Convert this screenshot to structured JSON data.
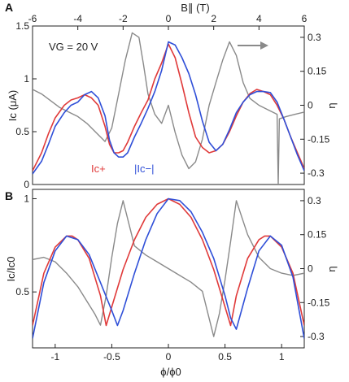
{
  "colors": {
    "red": "#E03A3A",
    "blue": "#2F4FD8",
    "gray": "#8A8A8A",
    "axis": "#222222"
  },
  "chart_data": [
    {
      "panel": "A",
      "type": "line",
      "top_xlabel": "B∥ (T)",
      "xlim": [
        -6,
        6
      ],
      "x_ticks": [
        -6,
        -4,
        -2,
        0,
        2,
        4,
        6
      ],
      "ylabel": "Ic (μA)",
      "ylim": [
        0,
        1.5
      ],
      "y_ticks": [
        0,
        0.5,
        1,
        1.5
      ],
      "y_ticklabels": [
        "0",
        "0.5",
        "1",
        "1.5"
      ],
      "y2label": "η",
      "y2lim": [
        -0.35,
        0.35
      ],
      "y2_ticks": [
        -0.3,
        -0.15,
        0,
        0.15,
        0.3
      ],
      "y2_ticklabels": [
        "-0.3",
        "-0.15",
        "0",
        "0.15",
        "0.3"
      ],
      "annotation": "VG = 20 V",
      "legend": [
        "Ic+",
        "|Ic−|"
      ],
      "series": [
        {
          "name": "Ic+",
          "color": "red",
          "axis": "left",
          "x": [
            -6,
            -5.6,
            -5.3,
            -5,
            -4.6,
            -4.3,
            -4,
            -3.7,
            -3.4,
            -3.1,
            -2.8,
            -2.6,
            -2.4,
            -2.2,
            -2,
            -1.8,
            -1.5,
            -1.2,
            -0.9,
            -0.6,
            -0.3,
            0,
            0.3,
            0.6,
            0.9,
            1.2,
            1.5,
            1.8,
            2.1,
            2.4,
            2.7,
            3,
            3.3,
            3.6,
            3.9,
            4.2,
            4.5,
            4.8,
            5.1,
            5.4,
            5.7,
            6
          ],
          "y": [
            0.13,
            0.3,
            0.48,
            0.63,
            0.75,
            0.8,
            0.82,
            0.85,
            0.82,
            0.75,
            0.55,
            0.38,
            0.3,
            0.3,
            0.32,
            0.4,
            0.55,
            0.68,
            0.8,
            1.0,
            1.15,
            1.33,
            1.2,
            0.95,
            0.68,
            0.45,
            0.35,
            0.3,
            0.32,
            0.38,
            0.5,
            0.65,
            0.78,
            0.86,
            0.9,
            0.88,
            0.85,
            0.75,
            0.62,
            0.45,
            0.3,
            0.15
          ]
        },
        {
          "name": "|Ic−|",
          "color": "blue",
          "axis": "left",
          "x": [
            -6,
            -5.6,
            -5.3,
            -5,
            -4.6,
            -4.3,
            -4,
            -3.7,
            -3.4,
            -3.1,
            -2.8,
            -2.6,
            -2.4,
            -2.2,
            -2,
            -1.8,
            -1.5,
            -1.2,
            -0.9,
            -0.6,
            -0.3,
            0,
            0.3,
            0.6,
            0.9,
            1.2,
            1.5,
            1.8,
            2.1,
            2.4,
            2.7,
            3,
            3.3,
            3.6,
            3.9,
            4.2,
            4.5,
            4.8,
            5.1,
            5.4,
            5.7,
            6
          ],
          "y": [
            0.1,
            0.22,
            0.38,
            0.55,
            0.68,
            0.75,
            0.78,
            0.85,
            0.88,
            0.82,
            0.65,
            0.42,
            0.3,
            0.26,
            0.26,
            0.3,
            0.45,
            0.58,
            0.72,
            0.88,
            1.08,
            1.35,
            1.32,
            1.2,
            1.05,
            0.85,
            0.6,
            0.4,
            0.32,
            0.38,
            0.52,
            0.68,
            0.78,
            0.85,
            0.88,
            0.88,
            0.87,
            0.78,
            0.62,
            0.45,
            0.28,
            0.13
          ]
        },
        {
          "name": "η",
          "color": "gray",
          "axis": "right",
          "x": [
            -6,
            -5.6,
            -5.2,
            -4.8,
            -4.4,
            -4,
            -3.6,
            -3.2,
            -2.8,
            -2.5,
            -2.2,
            -1.9,
            -1.6,
            -1.3,
            -1.1,
            -0.9,
            -0.6,
            -0.3,
            0,
            0.3,
            0.6,
            0.9,
            1.2,
            1.5,
            1.8,
            2.1,
            2.4,
            2.7,
            3,
            3.3,
            3.6,
            4,
            4.4,
            4.8,
            4.85,
            4.9,
            5.2,
            5.6,
            6
          ],
          "y": [
            0.07,
            0.05,
            0.02,
            -0.01,
            -0.03,
            -0.05,
            -0.08,
            -0.12,
            -0.16,
            -0.1,
            0.05,
            0.2,
            0.32,
            0.3,
            0.18,
            0.05,
            -0.04,
            -0.08,
            0.0,
            -0.12,
            -0.22,
            -0.28,
            -0.25,
            -0.15,
            0.0,
            0.1,
            0.2,
            0.28,
            0.22,
            0.1,
            0.03,
            0.0,
            -0.02,
            -0.04,
            -0.35,
            -0.06,
            -0.05,
            -0.04,
            -0.03
          ]
        }
      ]
    },
    {
      "panel": "B",
      "type": "line",
      "xlabel": "ϕ/ϕ0",
      "xlim": [
        -1.2,
        1.2
      ],
      "x_ticks": [
        -1,
        -0.5,
        0,
        0.5,
        1
      ],
      "x_ticklabels": [
        "-1",
        "-0.5",
        "0",
        "0.5",
        "1"
      ],
      "ylabel": "Ic/Ic0",
      "ylim": [
        0.2,
        1.05
      ],
      "y_ticks": [
        0.5,
        1
      ],
      "y_ticklabels": [
        "0.5",
        "1"
      ],
      "y2label": "η",
      "y2lim": [
        -0.35,
        0.35
      ],
      "y2_ticks": [
        -0.3,
        -0.15,
        0,
        0.15,
        0.3
      ],
      "y2_ticklabels": [
        "-0.3",
        "-0.15",
        "0",
        "0.15",
        "0.3"
      ],
      "series": [
        {
          "color": "red",
          "axis": "left",
          "x": [
            -1.2,
            -1.1,
            -1,
            -0.9,
            -0.85,
            -0.8,
            -0.7,
            -0.6,
            -0.55,
            -0.5,
            -0.4,
            -0.3,
            -0.2,
            -0.1,
            0,
            0.1,
            0.2,
            0.3,
            0.4,
            0.5,
            0.55,
            0.6,
            0.7,
            0.8,
            0.85,
            0.9,
            1,
            1.1,
            1.2
          ],
          "y": [
            0.32,
            0.6,
            0.74,
            0.8,
            0.8,
            0.78,
            0.68,
            0.48,
            0.32,
            0.42,
            0.62,
            0.78,
            0.9,
            0.97,
            1.0,
            0.97,
            0.9,
            0.78,
            0.62,
            0.42,
            0.32,
            0.48,
            0.68,
            0.78,
            0.8,
            0.8,
            0.74,
            0.6,
            0.32
          ]
        },
        {
          "color": "blue",
          "axis": "left",
          "x": [
            -1.2,
            -1.1,
            -1,
            -0.9,
            -0.8,
            -0.7,
            -0.6,
            -0.5,
            -0.45,
            -0.4,
            -0.3,
            -0.2,
            -0.1,
            0,
            0.1,
            0.2,
            0.3,
            0.4,
            0.5,
            0.55,
            0.6,
            0.7,
            0.8,
            0.9,
            1,
            1.1,
            1.2
          ],
          "y": [
            0.25,
            0.55,
            0.72,
            0.8,
            0.78,
            0.7,
            0.55,
            0.4,
            0.32,
            0.4,
            0.6,
            0.78,
            0.92,
            1.0,
            0.99,
            0.93,
            0.82,
            0.68,
            0.48,
            0.36,
            0.3,
            0.52,
            0.72,
            0.8,
            0.75,
            0.58,
            0.25
          ]
        },
        {
          "color": "gray",
          "axis": "right",
          "x": [
            -1.2,
            -1.1,
            -1,
            -0.9,
            -0.8,
            -0.7,
            -0.65,
            -0.6,
            -0.55,
            -0.5,
            -0.45,
            -0.4,
            -0.3,
            -0.2,
            -0.1,
            0,
            0.1,
            0.2,
            0.3,
            0.35,
            0.4,
            0.45,
            0.5,
            0.55,
            0.6,
            0.7,
            0.8,
            0.9,
            1,
            1.1,
            1.2
          ],
          "y": [
            0.04,
            0.05,
            0.03,
            -0.02,
            -0.08,
            -0.16,
            -0.2,
            -0.25,
            -0.12,
            0.05,
            0.2,
            0.3,
            0.1,
            0.06,
            0.03,
            0.0,
            -0.03,
            -0.06,
            -0.1,
            -0.2,
            -0.3,
            -0.2,
            -0.05,
            0.12,
            0.3,
            0.15,
            0.05,
            0.0,
            -0.02,
            -0.03,
            -0.02
          ]
        }
      ]
    }
  ]
}
